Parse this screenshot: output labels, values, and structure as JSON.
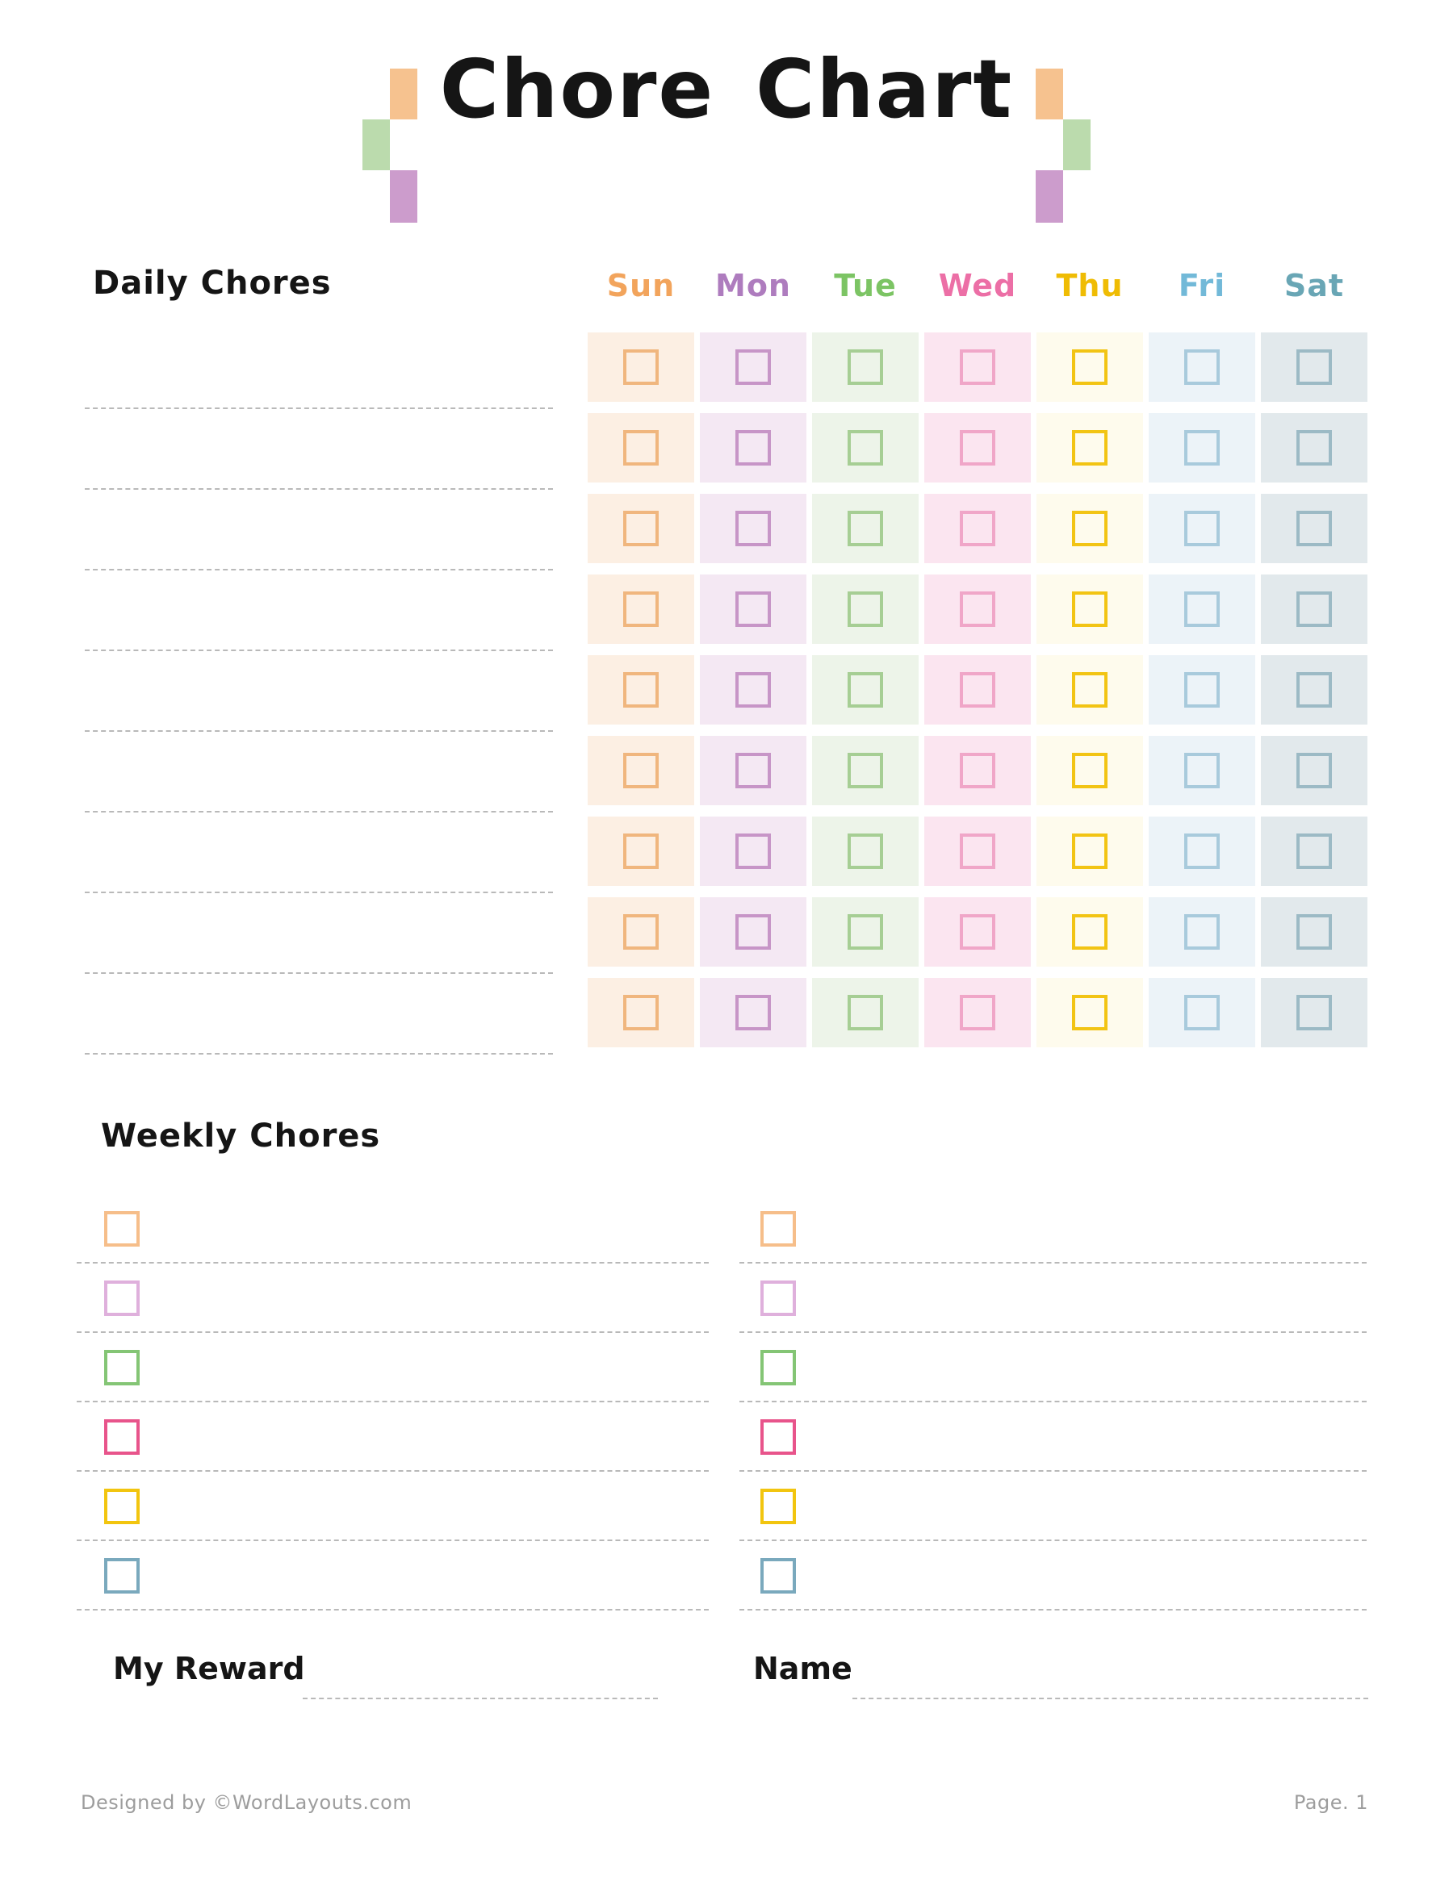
{
  "title": "Chore Chart",
  "decor": {
    "orange": "#F6C28F",
    "green": "#BBDBAD",
    "purple": "#CC9CCC"
  },
  "daily": {
    "heading": "Daily Chores",
    "num_rows": 9,
    "days": [
      {
        "label": "Sun",
        "label_color": "#F2A45C",
        "cell_bg": "#FCEFE3",
        "box_color": "#F0B67E"
      },
      {
        "label": "Mon",
        "label_color": "#AE7CBE",
        "cell_bg": "#F4E8F3",
        "box_color": "#C795C7"
      },
      {
        "label": "Tue",
        "label_color": "#7CC464",
        "cell_bg": "#EDF4E9",
        "box_color": "#A6CE94"
      },
      {
        "label": "Wed",
        "label_color": "#EC6FA6",
        "cell_bg": "#FBE5F0",
        "box_color": "#F0A6C8"
      },
      {
        "label": "Thu",
        "label_color": "#EFBC04",
        "cell_bg": "#FEFBED",
        "box_color": "#F2C414"
      },
      {
        "label": "Fri",
        "label_color": "#72B9D8",
        "cell_bg": "#ECF3F8",
        "box_color": "#A8CADC"
      },
      {
        "label": "Sat",
        "label_color": "#69A6B5",
        "cell_bg": "#E2E9EC",
        "box_color": "#9CBAC5"
      }
    ]
  },
  "weekly": {
    "heading": "Weekly Chores",
    "num_rows": 6,
    "num_columns": 2,
    "box_colors": [
      "#F6BE8A",
      "#DFB0DC",
      "#84C575",
      "#E8548B",
      "#F2C50F",
      "#7AA9BD"
    ]
  },
  "fields": {
    "reward_label": "My Reward",
    "name_label": "Name"
  },
  "footer": {
    "credit": "Designed by ©WordLayouts.com",
    "page": "Page. 1"
  }
}
